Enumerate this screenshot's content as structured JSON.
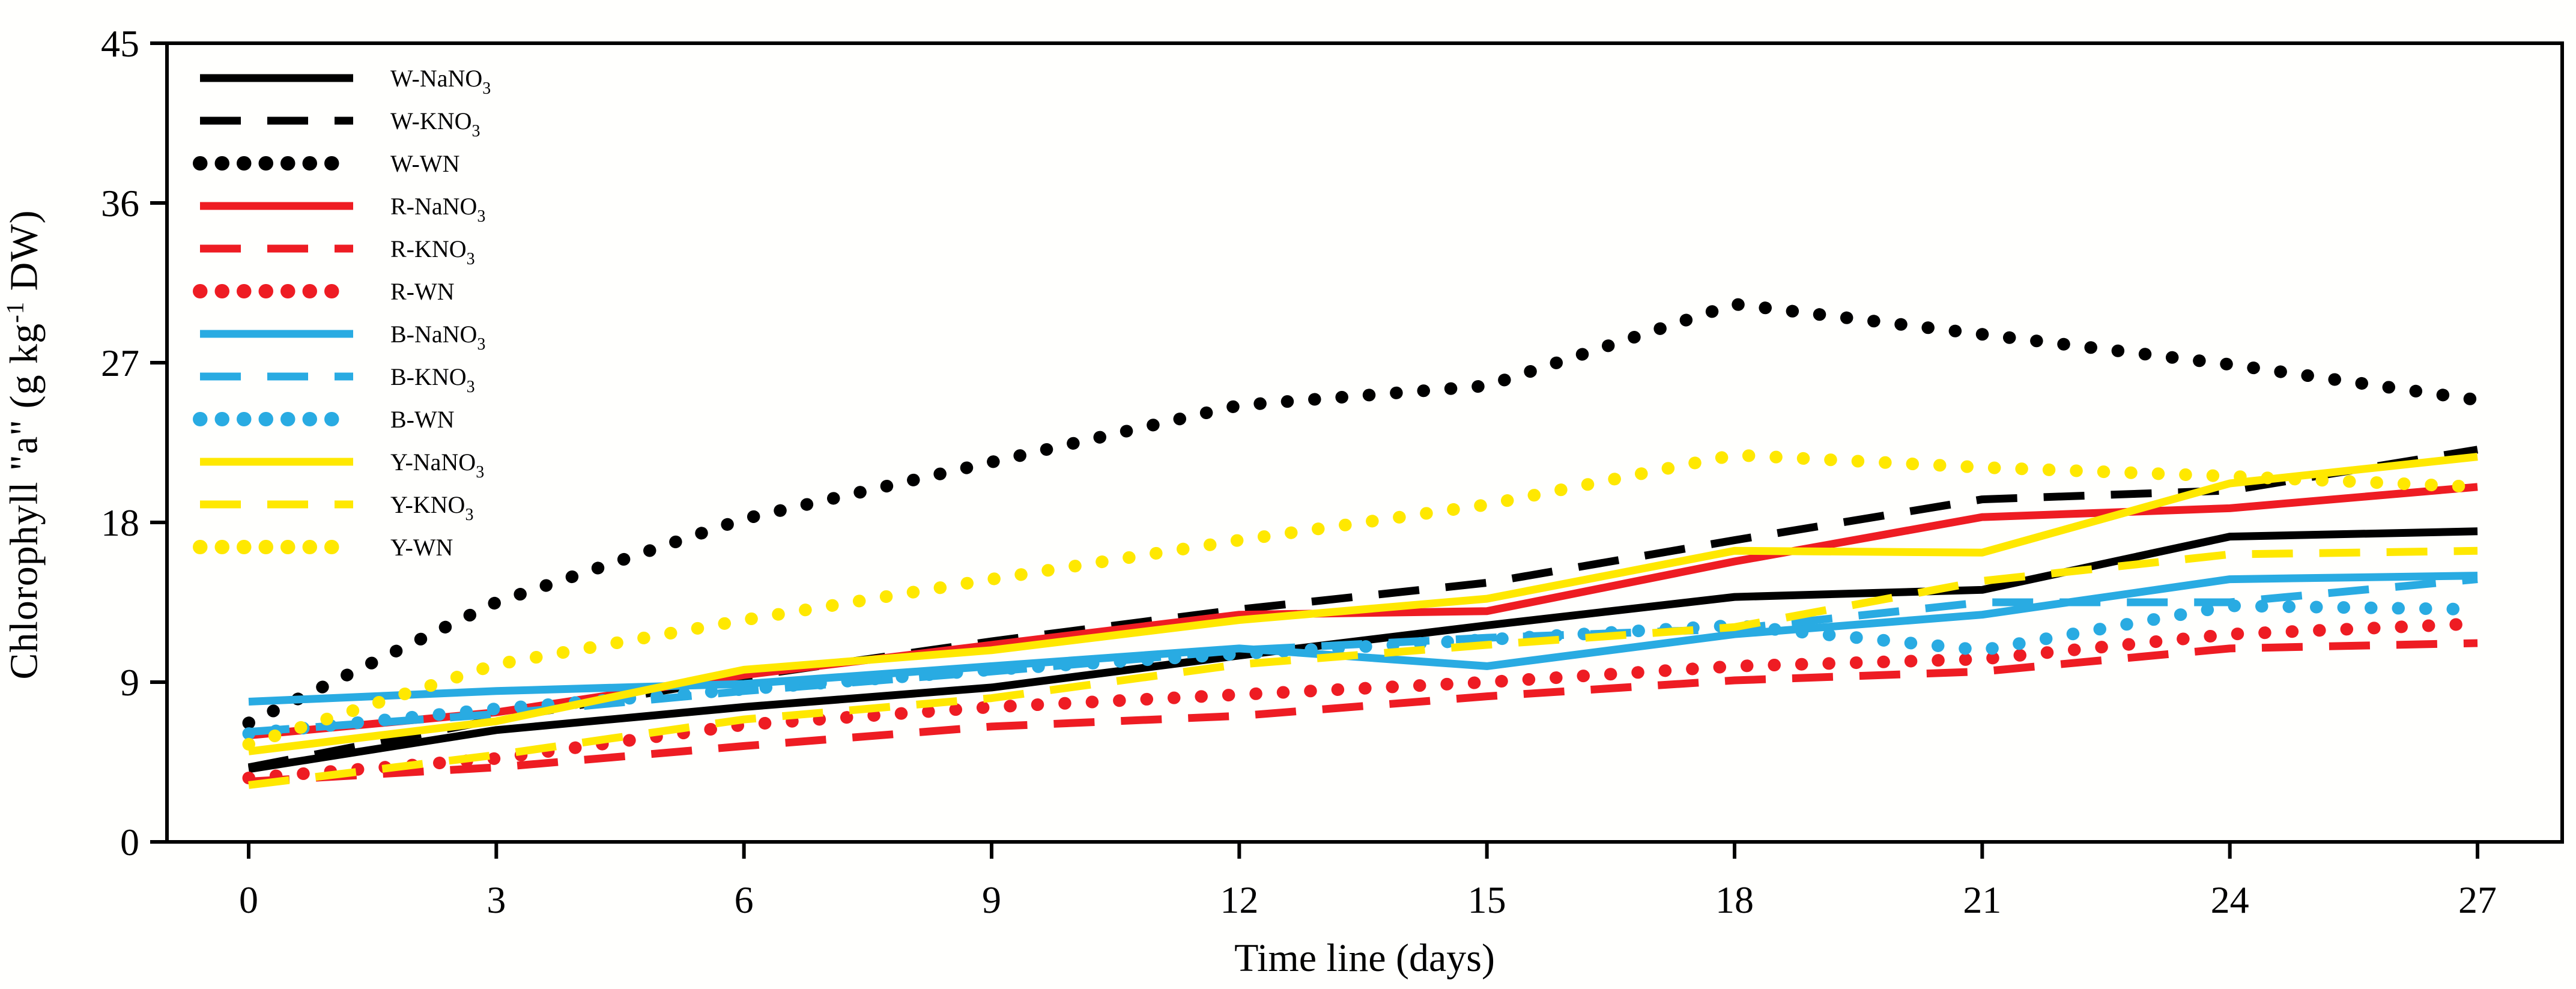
{
  "figure": {
    "background": "#fffffd",
    "frame_color": "#000000"
  },
  "colors": {
    "black": "#000000",
    "red": "#ee1c23",
    "blue": "#29abe2",
    "yellow": "#ffe800"
  },
  "chart_data": {
    "type": "line",
    "xlabel": "Time line (days)",
    "ylabel": "Chlorophyll \"a\" (g kg-1 DW)",
    "ylabel_parts": [
      {
        "text": "Chlorophyll \"a\" (g kg"
      },
      {
        "text": "-1",
        "script": "super"
      },
      {
        "text": " DW)"
      }
    ],
    "x": [
      0,
      3,
      6,
      9,
      12,
      15,
      18,
      21,
      24,
      27
    ],
    "xticks": [
      0,
      3,
      6,
      9,
      12,
      15,
      18,
      21,
      24,
      27
    ],
    "yticks": [
      0,
      9,
      18,
      27,
      36,
      45
    ],
    "xlim": [
      0,
      27
    ],
    "ylim": [
      0,
      45
    ],
    "grid": false,
    "legend_position": "upper left",
    "series": [
      {
        "name": "W-NaNO3",
        "label_parts": [
          {
            "text": "W-NaNO"
          },
          {
            "text": "3",
            "script": "sub"
          }
        ],
        "color": "black",
        "hex": "#000000",
        "style": "solid",
        "values": [
          4.1,
          6.3,
          7.6,
          8.7,
          10.5,
          12.2,
          13.8,
          14.2,
          17.2,
          17.5
        ]
      },
      {
        "name": "W-KNO3",
        "label_parts": [
          {
            "text": "W-KNO"
          },
          {
            "text": "3",
            "script": "sub"
          }
        ],
        "color": "black",
        "hex": "#000000",
        "style": "dashed",
        "values": [
          4.2,
          6.9,
          9.3,
          11.3,
          13.1,
          14.6,
          17.0,
          19.3,
          19.8,
          22.1
        ]
      },
      {
        "name": "W-WN",
        "label_parts": [
          {
            "text": "W-WN"
          }
        ],
        "color": "black",
        "hex": "#000000",
        "style": "dotted",
        "values": [
          6.7,
          13.5,
          18.2,
          21.4,
          24.6,
          25.7,
          30.3,
          28.6,
          26.9,
          24.9
        ]
      },
      {
        "name": "R-NaNO3",
        "label_parts": [
          {
            "text": "R-NaNO"
          },
          {
            "text": "3",
            "script": "sub"
          }
        ],
        "color": "red",
        "hex": "#ee1c23",
        "style": "solid",
        "values": [
          6.0,
          7.3,
          9.4,
          11.1,
          12.8,
          13.0,
          15.8,
          18.3,
          18.8,
          20.0
        ]
      },
      {
        "name": "R-KNO3",
        "label_parts": [
          {
            "text": "R-KNO"
          },
          {
            "text": "3",
            "script": "sub"
          }
        ],
        "color": "red",
        "hex": "#ee1c23",
        "style": "dashed",
        "values": [
          3.4,
          4.2,
          5.4,
          6.5,
          7.1,
          8.2,
          9.1,
          9.6,
          10.9,
          11.2
        ]
      },
      {
        "name": "R-WN",
        "label_parts": [
          {
            "text": "R-WN"
          }
        ],
        "color": "red",
        "hex": "#ee1c23",
        "style": "dotted",
        "values": [
          3.6,
          4.7,
          6.6,
          7.6,
          8.3,
          9.0,
          9.9,
          10.3,
          11.7,
          12.3
        ]
      },
      {
        "name": "B-NaNO3",
        "label_parts": [
          {
            "text": "B-NaNO"
          },
          {
            "text": "3",
            "script": "sub"
          }
        ],
        "color": "blue",
        "hex": "#29abe2",
        "style": "solid",
        "values": [
          7.9,
          8.5,
          8.9,
          9.9,
          10.9,
          9.9,
          11.7,
          12.8,
          14.8,
          15.0
        ]
      },
      {
        "name": "B-KNO3",
        "label_parts": [
          {
            "text": "B-KNO"
          },
          {
            "text": "3",
            "script": "sub"
          }
        ],
        "color": "blue",
        "hex": "#29abe2",
        "style": "dashed",
        "values": [
          6.2,
          7.2,
          8.5,
          9.6,
          10.8,
          11.5,
          12.0,
          13.5,
          13.5,
          14.8
        ]
      },
      {
        "name": "B-WN",
        "label_parts": [
          {
            "text": "B-WN"
          }
        ],
        "color": "blue",
        "hex": "#29abe2",
        "style": "dotted",
        "values": [
          6.1,
          7.5,
          8.6,
          9.7,
          10.6,
          11.4,
          12.2,
          10.8,
          13.3,
          13.1
        ]
      },
      {
        "name": "Y-NaNO3",
        "label_parts": [
          {
            "text": "Y-NaNO"
          },
          {
            "text": "3",
            "script": "sub"
          }
        ],
        "color": "yellow",
        "hex": "#ffe800",
        "style": "solid",
        "values": [
          5.1,
          6.8,
          9.7,
          10.8,
          12.5,
          13.7,
          16.4,
          16.3,
          20.2,
          21.7
        ]
      },
      {
        "name": "Y-KNO3",
        "label_parts": [
          {
            "text": "Y-KNO"
          },
          {
            "text": "3",
            "script": "sub"
          }
        ],
        "color": "yellow",
        "hex": "#ffe800",
        "style": "dashed",
        "values": [
          3.2,
          4.9,
          6.9,
          8.1,
          10.0,
          11.1,
          12.1,
          14.7,
          16.2,
          16.4
        ]
      },
      {
        "name": "Y-WN",
        "label_parts": [
          {
            "text": "Y-WN"
          }
        ],
        "color": "yellow",
        "hex": "#ffe800",
        "style": "dotted",
        "values": [
          5.5,
          10.0,
          12.5,
          14.8,
          17.0,
          19.0,
          21.8,
          21.1,
          20.6,
          20.0
        ]
      }
    ]
  }
}
